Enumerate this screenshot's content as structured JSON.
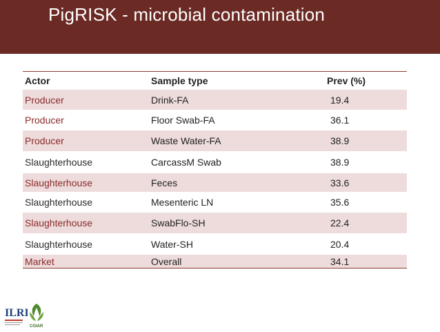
{
  "title": "PigRISK -  microbial contamination",
  "table": {
    "headers": [
      "Actor",
      "Sample type",
      "Prev (%)"
    ],
    "rows": [
      {
        "actor": "Producer",
        "sample": "Drink-FA",
        "prev": "19.4",
        "band": true,
        "actor_color": "red"
      },
      {
        "actor": "Producer",
        "sample": "Floor Swab-FA",
        "prev": "36.1",
        "band": false,
        "actor_color": "red"
      },
      {
        "actor": "Producer",
        "sample": "Waste Water-FA",
        "prev": "38.9",
        "band": true,
        "actor_color": "red"
      },
      {
        "actor": "Slaughterhouse",
        "sample": "CarcassM Swab",
        "prev": "38.9",
        "band": false,
        "actor_color": "plain"
      },
      {
        "actor": "Slaughterhouse",
        "sample": "Feces",
        "prev": "33.6",
        "band": true,
        "actor_color": "red"
      },
      {
        "actor": "Slaughterhouse",
        "sample": "Mesenteric LN",
        "prev": "35.6",
        "band": false,
        "actor_color": "plain"
      },
      {
        "actor": "Slaughterhouse",
        "sample": "SwabFlo-SH",
        "prev": "22.4",
        "band": true,
        "actor_color": "red"
      },
      {
        "actor": "Slaughterhouse",
        "sample": "Water-SH",
        "prev": "20.4",
        "band": false,
        "actor_color": "plain"
      },
      {
        "actor": "Market",
        "sample": "Overall",
        "prev": "34.1",
        "band": true,
        "actor_color": "red"
      }
    ]
  },
  "logos": {
    "ilri": "ILRI",
    "cgiar": "CGIAR"
  },
  "colors": {
    "title_bar": "#6b2a24",
    "band": "#eedcdc",
    "actor_red": "#8a2a2a"
  }
}
